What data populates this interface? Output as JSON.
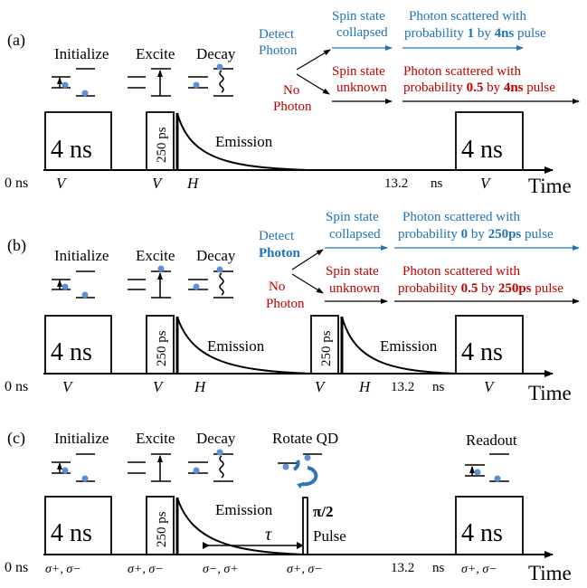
{
  "colors": {
    "blue": "#1f73b8",
    "red": "#c00000",
    "black": "#000000",
    "dot": "#5b8fd6"
  },
  "common": {
    "pulse4": "4 ns",
    "pulse250": "250 ps",
    "zero": "0 ns",
    "t132": "13.2",
    "ns": "ns",
    "time": "Time",
    "initialize": "Initialize",
    "excite": "Excite",
    "decay": "Decay",
    "emission": "Emission",
    "pV": "V",
    "pH": "H"
  },
  "a": {
    "label": "(a)",
    "detect1": "Detect",
    "detect2": "Photon",
    "noph1": "No",
    "noph2": "Photon",
    "coll1": "Spin state",
    "coll2": "collapsed",
    "unk1": "Spin state",
    "unk2": "unknown",
    "top1": "Photon scattered with",
    "top2a": "probability ",
    "top2b": "1",
    "top2c": " by ",
    "top2d": "4ns",
    "top2e": " pulse",
    "bot1": "Photon scattered with",
    "bot2a": "probability ",
    "bot2b": "0.5",
    "bot2c": " by ",
    "bot2d": "4ns",
    "bot2e": " pulse"
  },
  "b": {
    "label": "(b)",
    "detect1": "Detect",
    "detect2": "Photon",
    "noph1": "No",
    "noph2": "Photon",
    "coll1": "Spin state",
    "coll2": "collapsed",
    "unk1": "Spin state",
    "unk2": "unknown",
    "top1": "Photon scattered with",
    "top2a": "probability ",
    "top2b": "0",
    "top2c": " by ",
    "top2d": "250ps",
    "top2e": " pulse",
    "bot1": "Photon scattered with",
    "bot2a": "probability ",
    "bot2b": "0.5",
    "bot2c": " by ",
    "bot2d": "250ps",
    "bot2e": " pulse"
  },
  "c": {
    "label": "(c)",
    "rotate": "Rotate QD",
    "readout": "Readout",
    "tau": "τ",
    "pi2": "π/2",
    "pulse": "Pulse",
    "pol1": "σ+, σ−",
    "pol2": "σ+, σ−",
    "pol3": "σ−, σ+",
    "pol4": "σ+, σ−",
    "pol5": "σ+, σ−"
  }
}
